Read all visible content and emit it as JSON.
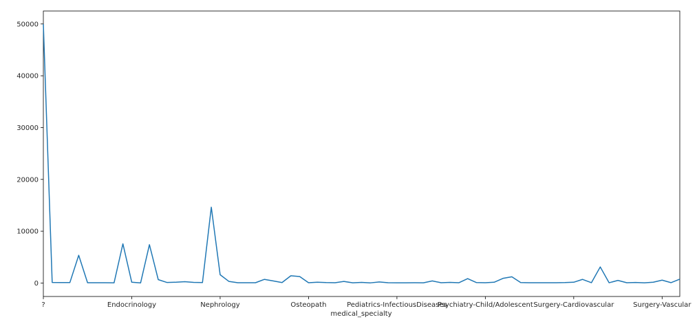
{
  "chart_data": {
    "type": "line",
    "title": "",
    "xlabel": "medical_specialty",
    "ylabel": "",
    "ylim": [
      -2600,
      52500
    ],
    "yticks": [
      0,
      10000,
      20000,
      30000,
      40000,
      50000
    ],
    "xtick_labels": [
      {
        "index": 0,
        "label": "?"
      },
      {
        "index": 10,
        "label": "Endocrinology"
      },
      {
        "index": 20,
        "label": "Nephrology"
      },
      {
        "index": 30,
        "label": "Osteopath"
      },
      {
        "index": 40,
        "label": "Pediatrics-InfectiousDiseases"
      },
      {
        "index": 50,
        "label": "Psychiatry-Child/Adolescent"
      },
      {
        "index": 60,
        "label": "Surgery-Cardiovascular"
      },
      {
        "index": 70,
        "label": "Surgery-Vascular"
      }
    ],
    "grid": false,
    "legend": "none",
    "color": "#1f77b4",
    "series": [
      {
        "values": [
          49949,
          100,
          80,
          82,
          5352,
          60,
          55,
          50,
          40,
          7565,
          150,
          20,
          7400,
          650,
          100,
          150,
          250,
          130,
          80,
          14635,
          1600,
          300,
          60,
          50,
          55,
          700,
          400,
          90,
          1400,
          1250,
          60,
          150,
          80,
          60,
          300,
          40,
          120,
          30,
          200,
          60,
          40,
          40,
          50,
          40,
          400,
          50,
          130,
          50,
          850,
          80,
          60,
          150,
          900,
          1200,
          80,
          60,
          60,
          50,
          50,
          80,
          150,
          700,
          60,
          3100,
          50,
          500,
          60,
          100,
          40,
          150,
          550,
          70,
          750
        ]
      }
    ]
  }
}
